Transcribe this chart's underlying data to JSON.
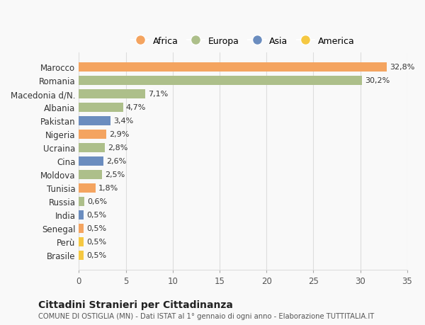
{
  "countries": [
    "Marocco",
    "Romania",
    "Macedonia d/N.",
    "Albania",
    "Pakistan",
    "Nigeria",
    "Ucraina",
    "Cina",
    "Moldova",
    "Tunisia",
    "Russia",
    "India",
    "Senegal",
    "Perù",
    "Brasile"
  ],
  "values": [
    32.8,
    30.2,
    7.1,
    4.7,
    3.4,
    2.9,
    2.8,
    2.6,
    2.5,
    1.8,
    0.6,
    0.5,
    0.5,
    0.5,
    0.5
  ],
  "labels": [
    "32,8%",
    "30,2%",
    "7,1%",
    "4,7%",
    "3,4%",
    "2,9%",
    "2,8%",
    "2,6%",
    "2,5%",
    "1,8%",
    "0,6%",
    "0,5%",
    "0,5%",
    "0,5%",
    "0,5%"
  ],
  "continents": [
    "Africa",
    "Europa",
    "Europa",
    "Europa",
    "Asia",
    "Africa",
    "Europa",
    "Asia",
    "Europa",
    "Africa",
    "Europa",
    "Asia",
    "Africa",
    "America",
    "America"
  ],
  "colors": {
    "Africa": "#F4A460",
    "Europa": "#ADBF8A",
    "Asia": "#6B8DBF",
    "America": "#F5C842"
  },
  "legend_order": [
    "Africa",
    "Europa",
    "Asia",
    "America"
  ],
  "xlim": [
    0,
    35
  ],
  "xticks": [
    0,
    5,
    10,
    15,
    20,
    25,
    30,
    35
  ],
  "title": "Cittadini Stranieri per Cittadinanza",
  "subtitle": "COMUNE DI OSTIGLIA (MN) - Dati ISTAT al 1° gennaio di ogni anno - Elaborazione TUTTITALIA.IT",
  "background_color": "#f9f9f9",
  "bar_height": 0.65,
  "grid_color": "#dddddd"
}
